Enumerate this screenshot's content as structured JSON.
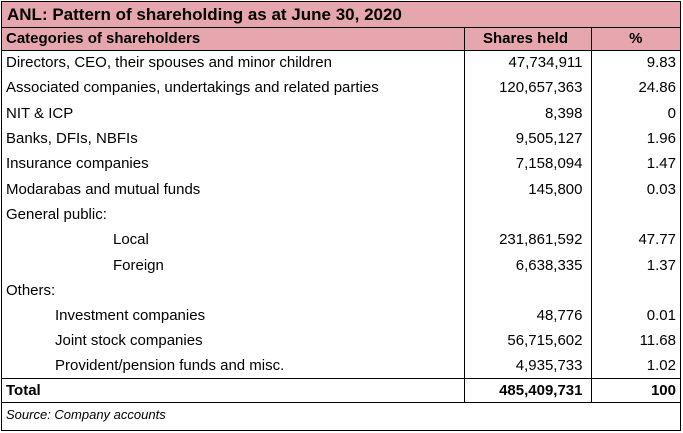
{
  "title": "ANL: Pattern of shareholding as at June 30, 2020",
  "headers": {
    "category": "Categories of shareholders",
    "shares": "Shares held",
    "pct": "%"
  },
  "rows": [
    {
      "label": "Directors, CEO, their spouses and minor children",
      "shares": "47,734,911",
      "pct": "9.83"
    },
    {
      "label": "Associated companies, undertakings and related parties",
      "shares": "120,657,363",
      "pct": "24.86"
    },
    {
      "label": "NIT & ICP",
      "shares": "8,398",
      "pct": "0"
    },
    {
      "label": "Banks, DFIs, NBFIs",
      "shares": "9,505,127",
      "pct": "1.96"
    },
    {
      "label": "Insurance companies",
      "shares": "7,158,094",
      "pct": "1.47"
    },
    {
      "label": "Modarabas and mutual funds",
      "shares": "145,800",
      "pct": "0.03"
    },
    {
      "label": "General public:",
      "shares": "",
      "pct": ""
    },
    {
      "label": "Local",
      "shares": "231,861,592",
      "pct": "47.77"
    },
    {
      "label": "Foreign",
      "shares": "6,638,335",
      "pct": "1.37"
    },
    {
      "label": "Others:",
      "shares": "",
      "pct": ""
    },
    {
      "label": "Investment companies",
      "shares": "48,776",
      "pct": "0.01"
    },
    {
      "label": "Joint stock companies",
      "shares": "56,715,602",
      "pct": "11.68"
    },
    {
      "label": "Provident/pension funds and misc.",
      "shares": "4,935,733",
      "pct": "1.02"
    }
  ],
  "total": {
    "label": "Total",
    "shares": "485,409,731",
    "pct": "100"
  },
  "source": "Source: Company accounts"
}
